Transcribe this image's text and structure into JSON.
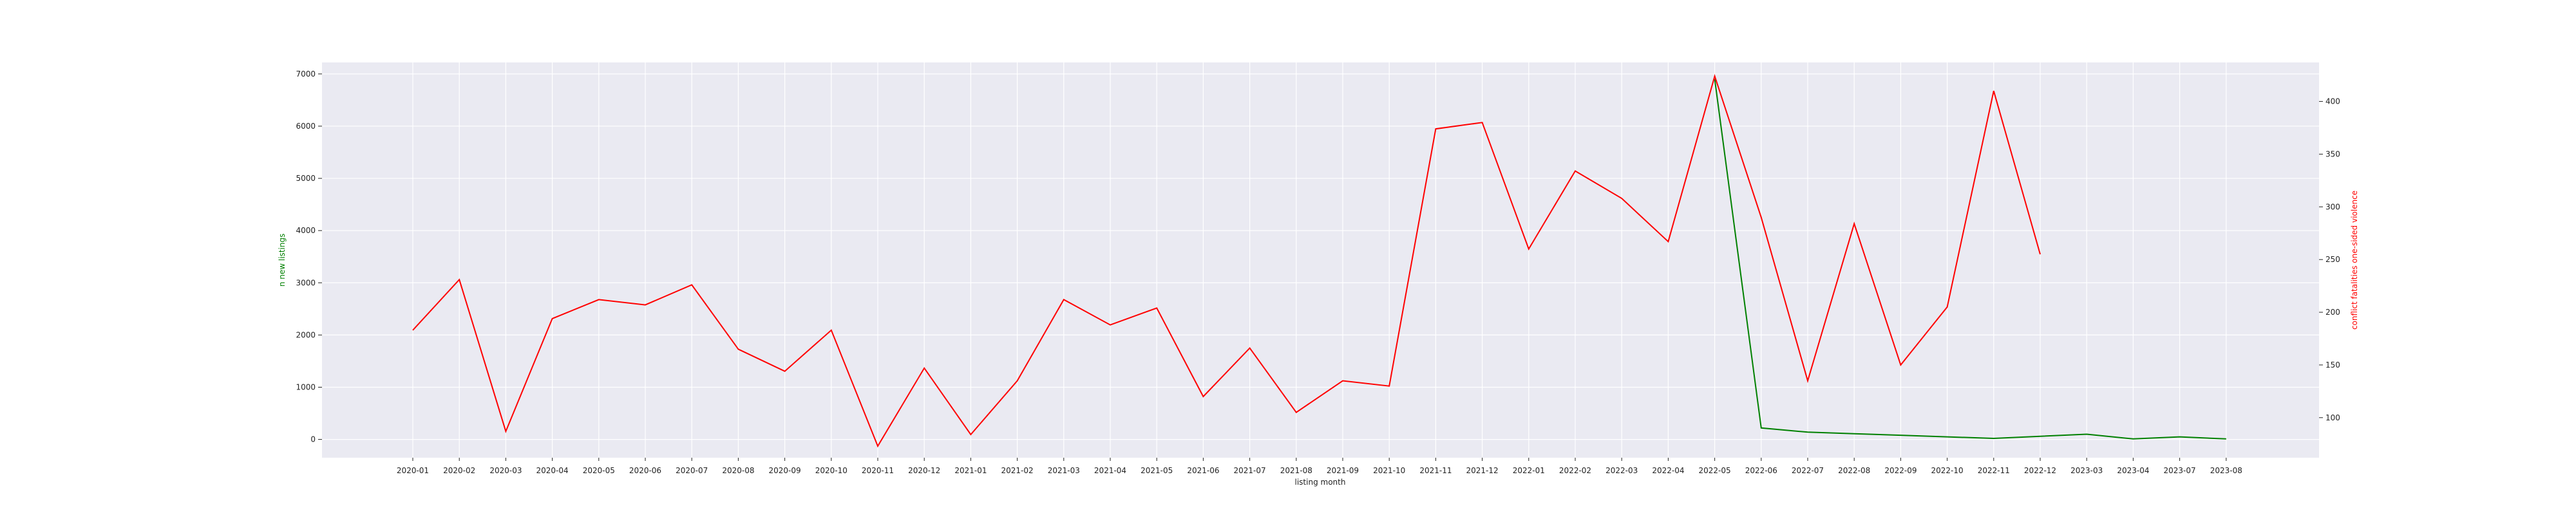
{
  "chart_data": {
    "type": "line",
    "xlabel": "listing month",
    "ylabel_left": "n new listings",
    "ylabel_right": "conflict fatalities one-sided violence",
    "colors": {
      "left_series": "#008000",
      "right_series": "#ff0000",
      "plot_background": "#eaeaf2",
      "grid": "#ffffff"
    },
    "grid": true,
    "x": [
      "2020-01",
      "2020-02",
      "2020-03",
      "2020-04",
      "2020-05",
      "2020-06",
      "2020-07",
      "2020-08",
      "2020-09",
      "2020-10",
      "2020-11",
      "2020-12",
      "2021-01",
      "2021-02",
      "2021-03",
      "2021-04",
      "2021-05",
      "2021-06",
      "2021-07",
      "2021-08",
      "2021-09",
      "2021-10",
      "2021-11",
      "2021-12",
      "2022-01",
      "2022-02",
      "2022-03",
      "2022-04",
      "2022-05",
      "2022-06",
      "2022-07",
      "2022-08",
      "2022-09",
      "2022-10",
      "2022-11",
      "2022-12",
      "2023-03",
      "2023-04",
      "2023-07",
      "2023-08"
    ],
    "y_left": {
      "ticks": [
        0,
        1000,
        2000,
        3000,
        4000,
        5000,
        6000,
        7000
      ],
      "ylim": [
        -350,
        7220
      ]
    },
    "y_right": {
      "ticks": [
        100,
        150,
        200,
        250,
        300,
        350,
        400
      ],
      "ylim": [
        62,
        437
      ]
    },
    "series": [
      {
        "axis": "left",
        "x": [
          "2022-05",
          "2022-06",
          "2022-07",
          "2022-08",
          "2022-09",
          "2022-10",
          "2022-11",
          "2022-12",
          "2023-03",
          "2023-04",
          "2023-07",
          "2023-08"
        ],
        "values": [
          6900,
          220,
          140,
          110,
          80,
          50,
          20,
          60,
          100,
          10,
          50,
          10
        ]
      },
      {
        "axis": "right",
        "x": [
          "2020-01",
          "2020-02",
          "2020-03",
          "2020-04",
          "2020-05",
          "2020-06",
          "2020-07",
          "2020-08",
          "2020-09",
          "2020-10",
          "2020-11",
          "2020-12",
          "2021-01",
          "2021-02",
          "2021-03",
          "2021-04",
          "2021-05",
          "2021-06",
          "2021-07",
          "2021-08",
          "2021-09",
          "2021-10",
          "2021-11",
          "2021-12",
          "2022-01",
          "2022-02",
          "2022-03",
          "2022-04",
          "2022-05",
          "2022-06",
          "2022-07",
          "2022-08",
          "2022-09",
          "2022-10",
          "2022-11",
          "2022-12"
        ],
        "values": [
          183,
          231,
          87,
          194,
          212,
          207,
          226,
          165,
          144,
          183,
          73,
          147,
          84,
          135,
          212,
          188,
          204,
          120,
          166,
          105,
          135,
          130,
          374,
          380,
          260,
          334,
          308,
          267,
          424,
          290,
          135,
          284,
          150,
          205,
          410,
          255
        ]
      }
    ]
  }
}
